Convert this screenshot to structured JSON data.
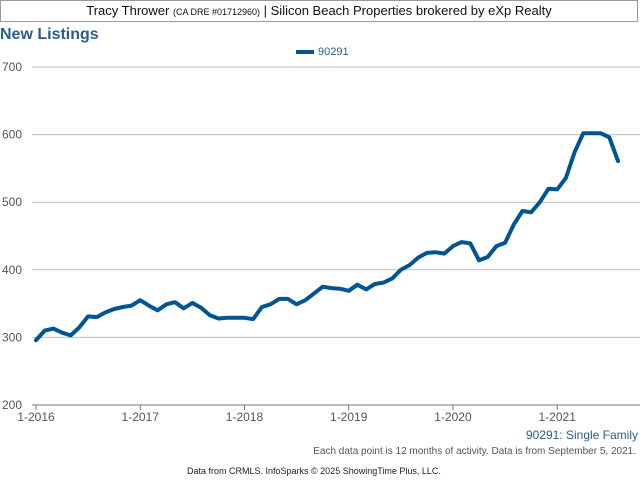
{
  "header": {
    "agent": "Tracy Thrower",
    "dre": "(CA DRE #01712960)",
    "brokerage": "| Silicon Beach Properties brokered by eXp Realty"
  },
  "footer": {
    "series_note": "90291: Single Family",
    "activity_note": "Each data point is 12 months of activity. Data is from September 5, 2021.",
    "source_note": "Data from CRMLS. InfoSparks © 2025 ShowingTime Plus, LLC."
  },
  "chart_data": {
    "type": "line",
    "title": "New Listings",
    "xlabel": "",
    "ylabel": "",
    "ylim": [
      200,
      700
    ],
    "yticks": [
      200,
      300,
      400,
      500,
      600,
      700
    ],
    "xlim": [
      "2016-01",
      "2021-08"
    ],
    "xticks": [
      "1-2016",
      "1-2017",
      "1-2018",
      "1-2019",
      "1-2020",
      "1-2021"
    ],
    "grid": true,
    "legend_position": "top-center",
    "colors": {
      "line": "#005493",
      "title": "#2b5d8a",
      "grid": "#bdbdbd"
    },
    "x": [
      "2016-01",
      "2016-02",
      "2016-03",
      "2016-04",
      "2016-05",
      "2016-06",
      "2016-07",
      "2016-08",
      "2016-09",
      "2016-10",
      "2016-11",
      "2016-12",
      "2017-01",
      "2017-02",
      "2017-03",
      "2017-04",
      "2017-05",
      "2017-06",
      "2017-07",
      "2017-08",
      "2017-09",
      "2017-10",
      "2017-11",
      "2017-12",
      "2018-01",
      "2018-02",
      "2018-03",
      "2018-04",
      "2018-05",
      "2018-06",
      "2018-07",
      "2018-08",
      "2018-09",
      "2018-10",
      "2018-11",
      "2018-12",
      "2019-01",
      "2019-02",
      "2019-03",
      "2019-04",
      "2019-05",
      "2019-06",
      "2019-07",
      "2019-08",
      "2019-09",
      "2019-10",
      "2019-11",
      "2019-12",
      "2020-01",
      "2020-02",
      "2020-03",
      "2020-04",
      "2020-05",
      "2020-06",
      "2020-07",
      "2020-08",
      "2020-09",
      "2020-10",
      "2020-11",
      "2020-12",
      "2021-01",
      "2021-02",
      "2021-03",
      "2021-04",
      "2021-05",
      "2021-06",
      "2021-07",
      "2021-08"
    ],
    "series": [
      {
        "name": "90291",
        "values": [
          296,
          310,
          313,
          307,
          303,
          315,
          331,
          330,
          337,
          342,
          345,
          347,
          355,
          347,
          340,
          349,
          352,
          343,
          351,
          344,
          333,
          328,
          329,
          329,
          329,
          327,
          345,
          349,
          357,
          357,
          349,
          355,
          365,
          375,
          373,
          372,
          369,
          378,
          371,
          379,
          381,
          387,
          400,
          407,
          418,
          425,
          426,
          424,
          435,
          441,
          439,
          414,
          419,
          435,
          440,
          467,
          487,
          485,
          500,
          520,
          519,
          536,
          574,
          602,
          602,
          602,
          596,
          561
        ]
      }
    ]
  }
}
